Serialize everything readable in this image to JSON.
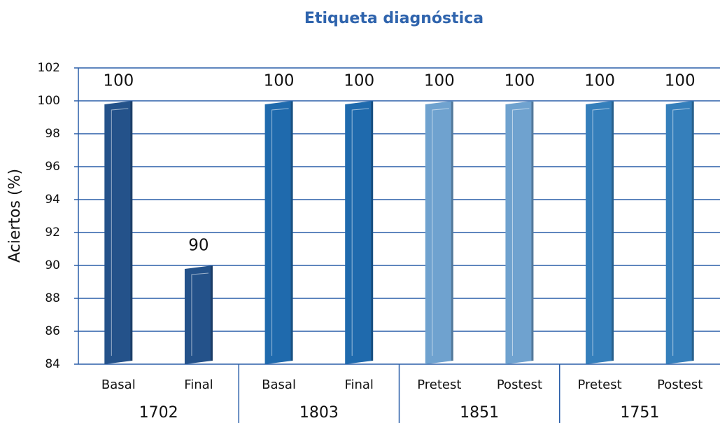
{
  "chart_data": {
    "type": "bar",
    "title": "Etiqueta diagnóstica",
    "y_label": "Aciertos (%)",
    "categories": [
      "Basal",
      "Final",
      "Basal",
      "Final",
      "Pretest",
      "Postest",
      "Pretest",
      "Postest"
    ],
    "groups": [
      "1702",
      "1803",
      "1851",
      "1751"
    ],
    "values": [
      100,
      90,
      100,
      100,
      100,
      100,
      100,
      100
    ],
    "colors": [
      "#24528a",
      "#1f6aad",
      "#6fa2cf",
      "#357fbb"
    ],
    "ylim": [
      84,
      102
    ],
    "yticks": [
      84,
      86,
      88,
      90,
      92,
      94,
      96,
      98,
      100,
      102
    ],
    "grid": true
  }
}
